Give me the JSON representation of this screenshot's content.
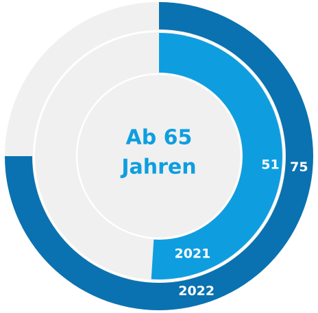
{
  "chart_data": {
    "type": "donut",
    "center_label": [
      "Ab 65",
      "Jahren"
    ],
    "total": 100,
    "track_color": "#f0f0f0",
    "series": [
      {
        "name": "2022",
        "value": 75,
        "color": "#0a72b0"
      },
      {
        "name": "2021",
        "value": 51,
        "color": "#0e9ee0"
      }
    ]
  }
}
